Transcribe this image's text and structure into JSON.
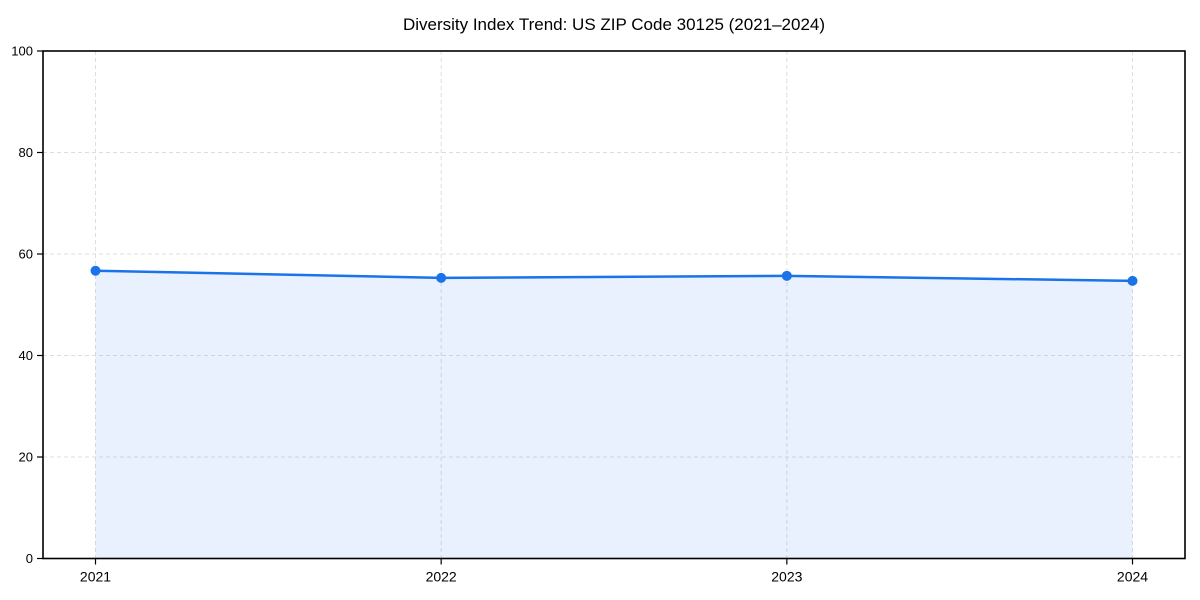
{
  "chart_data": {
    "type": "area",
    "title": "Diversity Index Trend: US ZIP Code 30125 (2021–2024)",
    "categories": [
      "2021",
      "2022",
      "2023",
      "2024"
    ],
    "series": [
      {
        "name": "Diversity Index",
        "values": [
          56.7,
          55.3,
          55.7,
          54.7
        ]
      }
    ],
    "xlabel": "",
    "ylabel": "",
    "ylim": [
      0,
      100
    ],
    "y_ticks": [
      0,
      20,
      40,
      60,
      80,
      100
    ],
    "grid": "dashed, horizontal and vertical",
    "legend_position": "none",
    "colors": {
      "line": "#1a73e8",
      "marker": "#1a73e8",
      "fill": "#1a73e8",
      "fill_opacity": "0.1",
      "grid": "#dedede",
      "axis": "#000000",
      "text": "#000000",
      "background": "#ffffff"
    }
  }
}
